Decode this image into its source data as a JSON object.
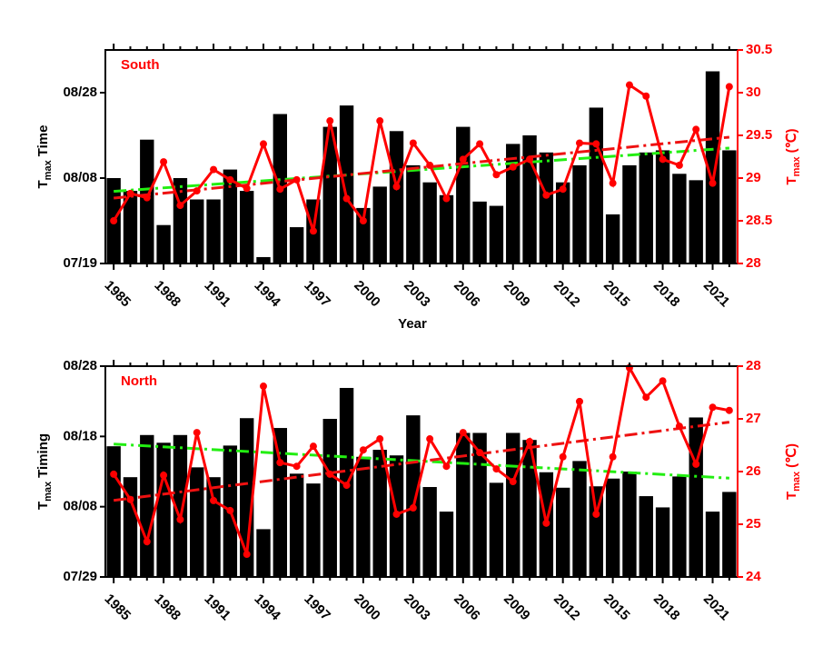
{
  "chart_data": [
    {
      "type": "bar_line",
      "title": "South",
      "xlabel": "Year",
      "ylabel": [
        "T",
        "max",
        "Time"
      ],
      "y2label": [
        "T",
        "max",
        "(℃)"
      ],
      "categories": [
        "1985",
        null,
        null,
        "1988",
        null,
        null,
        "1991",
        null,
        null,
        "1994",
        null,
        null,
        "1997",
        null,
        null,
        "2000",
        null,
        null,
        "2003",
        null,
        null,
        "2006",
        null,
        null,
        "2009",
        null,
        null,
        "2012",
        null,
        null,
        "2015",
        null,
        null,
        "2018",
        null,
        null,
        "2021",
        null
      ],
      "ylim": [
        200,
        250
      ],
      "yticks": [
        {
          "value": 200,
          "label": "07/19"
        },
        {
          "value": 220,
          "label": "08/08"
        },
        {
          "value": 240,
          "label": "08/28"
        }
      ],
      "y2lim": [
        28,
        30.5
      ],
      "y2ticks": [
        28,
        28.5,
        29,
        29.5,
        30,
        30.5
      ],
      "series": [
        {
          "kind": "bar",
          "color": "#000000",
          "trend_color": "#22ee11",
          "trendline": true,
          "values": [
            220,
            217,
            229,
            209,
            220,
            215,
            215,
            222,
            217,
            201.5,
            235,
            208.5,
            215,
            232,
            237,
            213,
            218,
            231,
            223,
            219,
            216,
            232,
            214.5,
            213.5,
            228,
            230,
            226,
            219,
            223,
            236.5,
            211.5,
            223,
            226,
            226.5,
            221,
            219.5,
            245,
            226.5
          ]
        },
        {
          "kind": "line",
          "axis": "y2",
          "color": "#ff0000",
          "trend_color": "#ee1111",
          "trendline": true,
          "values": [
            28.5,
            28.82,
            28.77,
            29.19,
            28.68,
            28.85,
            29.1,
            28.98,
            28.88,
            29.4,
            28.87,
            28.98,
            28.38,
            29.67,
            28.76,
            28.5,
            29.67,
            28.9,
            29.41,
            29.15,
            28.76,
            29.22,
            29.4,
            29.04,
            29.13,
            29.22,
            28.8,
            28.87,
            29.41,
            29.4,
            28.94,
            30.09,
            29.96,
            29.22,
            29.15,
            29.57,
            28.94,
            30.07
          ]
        }
      ]
    },
    {
      "type": "bar_line",
      "title": "North",
      "ylabel": [
        "T",
        "max",
        "Timing"
      ],
      "y2label": [
        "T",
        "max",
        "(℃)"
      ],
      "categories": [
        "1985",
        null,
        null,
        "1988",
        null,
        null,
        "1991",
        null,
        null,
        "1994",
        null,
        null,
        "1997",
        null,
        null,
        "2000",
        null,
        null,
        "2003",
        null,
        null,
        "2006",
        null,
        null,
        "2009",
        null,
        null,
        "2012",
        null,
        null,
        "2015",
        null,
        null,
        "2018",
        null,
        null,
        "2021",
        null
      ],
      "ylim": [
        210,
        240
      ],
      "yticks": [
        {
          "value": 210,
          "label": "07/29"
        },
        {
          "value": 220,
          "label": "08/08"
        },
        {
          "value": 230,
          "label": "08/18"
        },
        {
          "value": 240,
          "label": "08/28"
        }
      ],
      "y2lim": [
        24,
        28
      ],
      "y2ticks": [
        24,
        25,
        26,
        27,
        28
      ],
      "series": [
        {
          "kind": "bar",
          "color": "#000000",
          "trend_color": "#22ee11",
          "trendline": true,
          "values": [
            228.6,
            224.2,
            230.2,
            229.1,
            230.2,
            225.6,
            224.2,
            228.7,
            232.6,
            216.8,
            231.2,
            224.7,
            223.3,
            232.5,
            236.9,
            227.1,
            228.1,
            227.3,
            233,
            222.8,
            219.3,
            230.5,
            230.5,
            223.4,
            230.5,
            229.5,
            224.9,
            222.7,
            226.5,
            222.9,
            224,
            225,
            221.5,
            219.9,
            224.3,
            232.7,
            219.3,
            222.1
          ]
        },
        {
          "kind": "line",
          "axis": "y2",
          "color": "#ff0000",
          "trend_color": "#ee1111",
          "trendline": true,
          "values": [
            25.95,
            25.47,
            24.67,
            25.93,
            25.09,
            26.74,
            25.45,
            25.26,
            24.43,
            27.62,
            26.17,
            26.1,
            26.48,
            25.95,
            25.74,
            26.41,
            26.62,
            25.19,
            25.31,
            26.62,
            26.1,
            26.74,
            26.36,
            26.05,
            25.81,
            26.57,
            25.02,
            26.28,
            27.33,
            25.19,
            26.28,
            27.97,
            27.41,
            27.72,
            26.86,
            26.14,
            27.22,
            27.16
          ]
        }
      ]
    }
  ]
}
